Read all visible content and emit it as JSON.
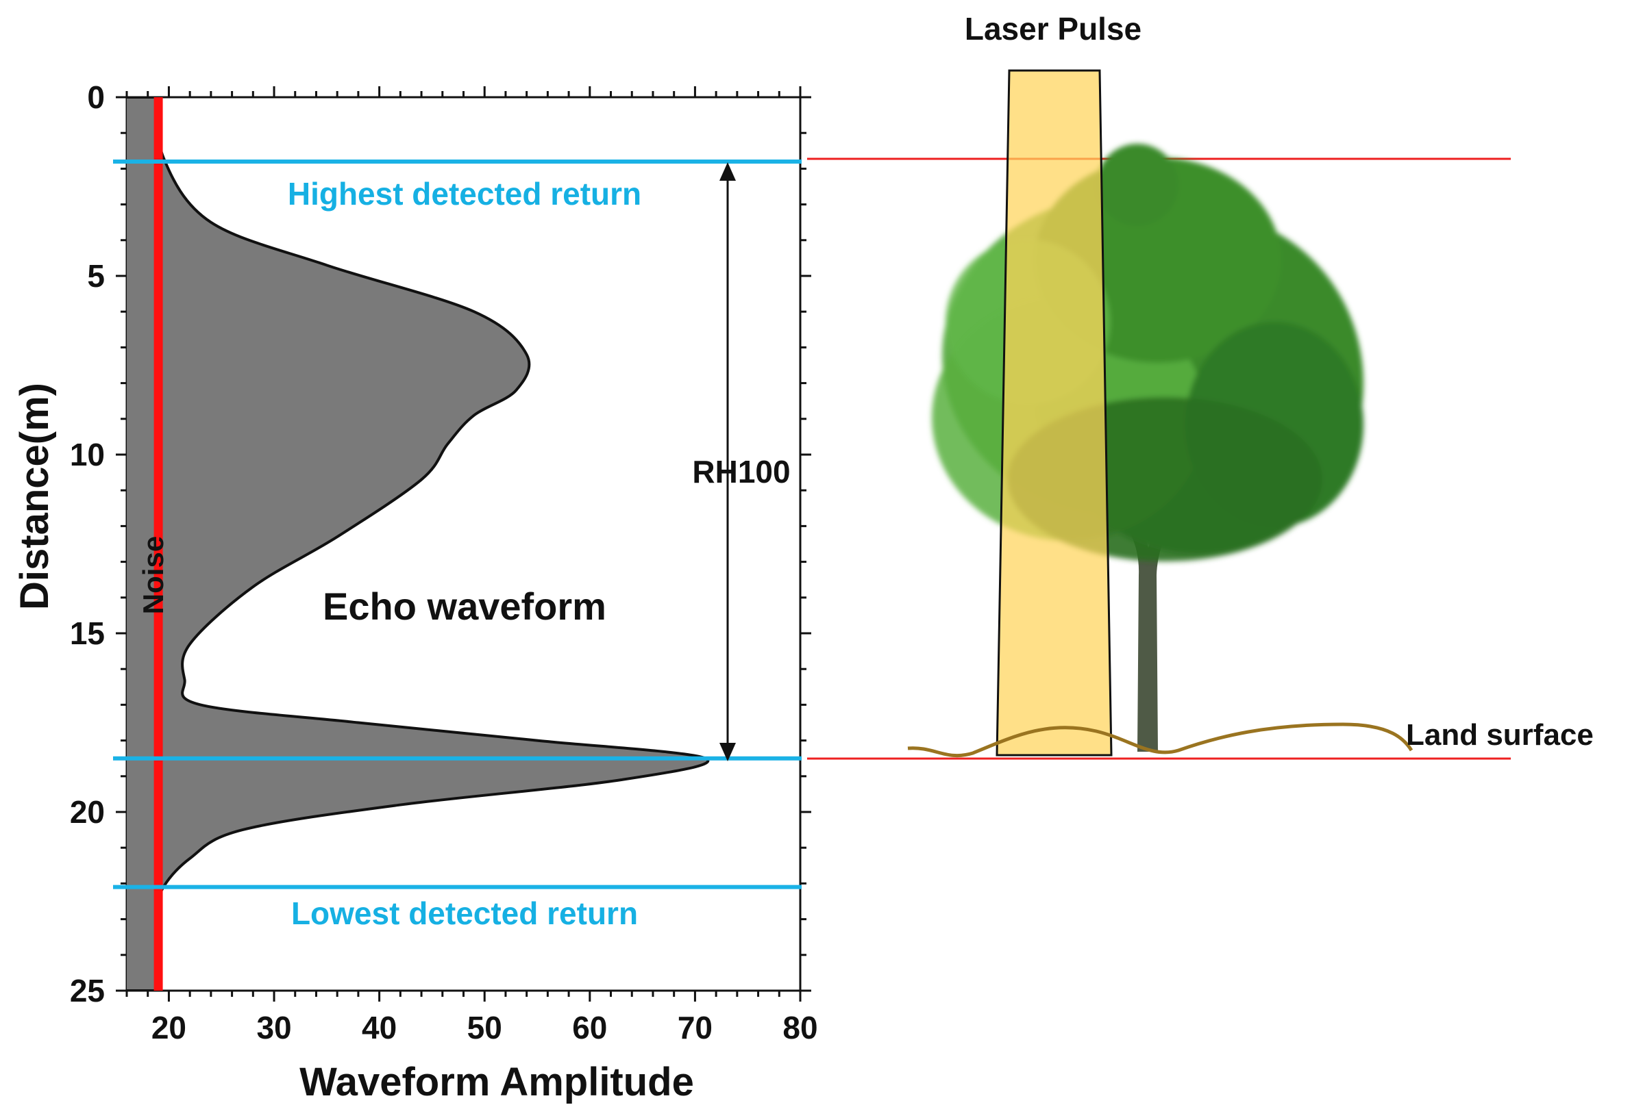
{
  "colors": {
    "noise": "#ff1010",
    "return_line": "#1ab2e6",
    "return_text": "#16b0e3",
    "waveform_fill": "#7a7a7a",
    "reference_line": "#ee2020",
    "laser_pulse": "#ffd45a",
    "ground": "#9a7420",
    "foliage_dark": "#2f7a25",
    "foliage_light": "#4fa636",
    "trunk": "#4f5a46"
  },
  "chart_data": {
    "type": "area",
    "x_axis": {
      "label": "Waveform Amplitude",
      "range": [
        16,
        80
      ],
      "ticks": [
        20,
        30,
        40,
        50,
        60,
        70,
        80
      ]
    },
    "y_axis": {
      "label": "Distance(m)",
      "range": [
        0,
        25
      ],
      "inverted": true,
      "ticks": [
        0,
        5,
        10,
        15,
        20,
        25
      ]
    },
    "noise_level": 19,
    "waveform": {
      "amplitude": [
        19,
        19.5,
        24,
        35,
        49,
        54,
        53,
        49,
        46.5,
        44,
        36,
        28,
        22,
        21.5,
        23,
        38,
        55,
        71,
        63,
        42,
        27,
        22,
        19.3,
        19,
        19
      ],
      "distance": [
        0,
        1.7,
        3.5,
        4.7,
        6.0,
        7.2,
        8.2,
        8.9,
        9.7,
        10.7,
        12.3,
        13.7,
        15.3,
        16.3,
        17.0,
        17.5,
        18.0,
        18.5,
        19.1,
        19.8,
        20.5,
        21.3,
        22.2,
        23.0,
        25
      ]
    },
    "highest_return_distance": 1.8,
    "lowest_return_distance": 22.1,
    "ground_return_distance": 18.5,
    "labels": {
      "highest": "Highest detected return",
      "lowest": "Lowest detected return",
      "noise": "Noise",
      "echo": "Echo waveform",
      "rh100": "RH100"
    }
  },
  "scene": {
    "laser_pulse_label": "Laser Pulse",
    "land_surface_label": "Land surface"
  }
}
